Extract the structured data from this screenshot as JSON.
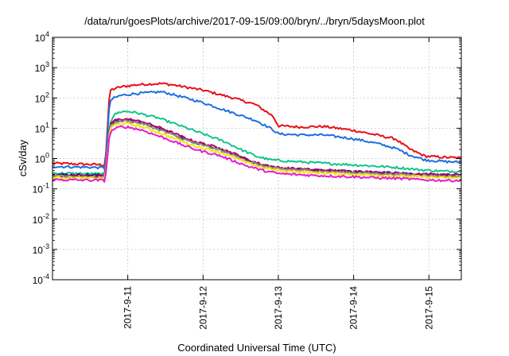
{
  "chart_data": {
    "type": "line",
    "title": "/data/run/goesPlots/archive/2017-09-15/09:00/bryn/../bryn/5daysMoon.plot",
    "xlabel": "Coordinated Universal Time (UTC)",
    "ylabel": "cSv/day",
    "x_unit": "days from 2017-09-10T00:00 UTC",
    "xlim": [
      0.0,
      5.43
    ],
    "ylim": [
      0.0001,
      10000
    ],
    "yscale": "log",
    "grid": true,
    "legend": "none",
    "x_ticks": [
      {
        "label": "2017-9-11",
        "x": 1.0
      },
      {
        "label": "2017-9-12",
        "x": 2.0
      },
      {
        "label": "2017-9-13",
        "x": 3.0
      },
      {
        "label": "2017-9-14",
        "x": 4.0
      },
      {
        "label": "2017-9-15",
        "x": 5.0
      }
    ],
    "y_ticks": [
      {
        "base": "10",
        "exp": "-4",
        "value": 0.0001
      },
      {
        "base": "10",
        "exp": "-3",
        "value": 0.001
      },
      {
        "base": "10",
        "exp": "-2",
        "value": 0.01
      },
      {
        "base": "10",
        "exp": "-1",
        "value": 0.1
      },
      {
        "base": "10",
        "exp": "0",
        "value": 1
      },
      {
        "base": "10",
        "exp": "1",
        "value": 10
      },
      {
        "base": "10",
        "exp": "2",
        "value": 100
      },
      {
        "base": "10",
        "exp": "3",
        "value": 1000
      },
      {
        "base": "10",
        "exp": "4",
        "value": 10000
      }
    ],
    "series": [
      {
        "color": "#e8101a",
        "x": [
          0.0,
          0.68,
          0.7,
          0.76,
          0.82,
          0.9,
          1.1,
          1.3,
          1.45,
          1.6,
          2.0,
          2.4,
          2.7,
          2.93,
          3.0,
          3.3,
          3.6,
          4.0,
          4.3,
          4.55,
          4.75,
          4.95,
          5.2,
          5.43
        ],
        "y": [
          0.7,
          0.62,
          0.58,
          180,
          200,
          230,
          270,
          290,
          300,
          270,
          180,
          100,
          60,
          25,
          12,
          11,
          11.5,
          8.5,
          6,
          4.5,
          2,
          1.2,
          1.1,
          1.05
        ]
      },
      {
        "color": "#1f6fe0",
        "x": [
          0.0,
          0.68,
          0.7,
          0.76,
          0.82,
          0.9,
          1.1,
          1.3,
          1.45,
          1.6,
          2.0,
          2.4,
          2.7,
          2.93,
          3.0,
          3.3,
          3.6,
          4.0,
          4.3,
          4.55,
          4.75,
          4.95,
          5.2,
          5.43
        ],
        "y": [
          0.55,
          0.5,
          0.45,
          80,
          100,
          120,
          140,
          150,
          160,
          130,
          70,
          32,
          18,
          9,
          6.5,
          6,
          6,
          4.5,
          3.2,
          2.2,
          1.3,
          0.9,
          0.8,
          0.75
        ]
      },
      {
        "color": "#14c38e",
        "x": [
          0.0,
          0.68,
          0.7,
          0.76,
          0.82,
          0.9,
          1.0,
          1.1,
          1.4,
          1.7,
          2.0,
          2.3,
          2.5,
          2.7,
          2.9,
          3.2,
          3.6,
          4.0,
          4.3,
          4.6,
          4.9,
          5.2,
          5.43
        ],
        "y": [
          0.33,
          0.31,
          0.3,
          15,
          28,
          35,
          36,
          33,
          22,
          12,
          6.5,
          3.5,
          2,
          1.2,
          0.9,
          0.8,
          0.7,
          0.62,
          0.56,
          0.5,
          0.42,
          0.38,
          0.38
        ]
      },
      {
        "color": "#22246e",
        "x": [
          0.0,
          0.68,
          0.7,
          0.76,
          0.82,
          0.9,
          1.0,
          1.2,
          1.5,
          1.8,
          2.0,
          2.2,
          2.4,
          2.6,
          2.8,
          3.0,
          3.3,
          3.6,
          4.0,
          4.3,
          4.6,
          4.9,
          5.2,
          5.43
        ],
        "y": [
          0.3,
          0.28,
          0.27,
          12,
          16,
          18,
          19,
          15,
          8,
          4,
          2.9,
          2.2,
          1.4,
          0.85,
          0.6,
          0.48,
          0.44,
          0.4,
          0.37,
          0.35,
          0.33,
          0.3,
          0.28,
          0.28
        ]
      },
      {
        "color": "#b3006a",
        "x": [
          0.0,
          0.68,
          0.7,
          0.76,
          0.82,
          0.9,
          1.0,
          1.2,
          1.5,
          1.8,
          2.0,
          2.2,
          2.4,
          2.6,
          2.8,
          3.0,
          3.3,
          3.6,
          4.0,
          4.3,
          4.6,
          4.9,
          5.2,
          5.43
        ],
        "y": [
          0.28,
          0.26,
          0.25,
          13,
          18,
          20,
          20,
          16,
          9,
          4.3,
          3.1,
          2.3,
          1.5,
          0.9,
          0.62,
          0.5,
          0.45,
          0.41,
          0.38,
          0.35,
          0.33,
          0.31,
          0.29,
          0.29
        ]
      },
      {
        "color": "#8b8f86",
        "x": [
          0.0,
          0.68,
          0.7,
          0.76,
          0.82,
          0.9,
          1.0,
          1.2,
          1.5,
          1.8,
          2.0,
          2.2,
          2.4,
          2.6,
          2.8,
          3.0,
          3.3,
          3.6,
          4.0,
          4.3,
          4.6,
          4.9,
          5.2,
          5.43
        ],
        "y": [
          0.26,
          0.24,
          0.23,
          11,
          15,
          17,
          17.5,
          14,
          7.5,
          3.8,
          2.7,
          2.0,
          1.3,
          0.8,
          0.56,
          0.45,
          0.41,
          0.37,
          0.34,
          0.32,
          0.3,
          0.28,
          0.26,
          0.26
        ]
      },
      {
        "color": "#f2e600",
        "x": [
          0.0,
          0.68,
          0.7,
          0.76,
          0.82,
          0.9,
          1.0,
          1.2,
          1.5,
          1.8,
          2.0,
          2.2,
          2.4,
          2.6,
          2.8,
          3.0,
          3.3,
          3.6,
          4.0,
          4.3,
          4.6,
          4.9,
          5.2,
          5.43
        ],
        "y": [
          0.24,
          0.22,
          0.21,
          9,
          12.5,
          14,
          14,
          11,
          6,
          3.1,
          2.2,
          1.7,
          1.1,
          0.7,
          0.5,
          0.4,
          0.36,
          0.33,
          0.3,
          0.28,
          0.26,
          0.25,
          0.23,
          0.23
        ]
      },
      {
        "color": "#e51ad6",
        "x": [
          0.0,
          0.68,
          0.7,
          0.76,
          0.82,
          0.9,
          1.0,
          1.2,
          1.5,
          1.8,
          2.0,
          2.2,
          2.4,
          2.6,
          2.8,
          3.0,
          3.3,
          3.6,
          4.0,
          4.3,
          4.6,
          4.9,
          5.2,
          5.43
        ],
        "y": [
          0.2,
          0.19,
          0.18,
          7,
          9.5,
          11,
          11,
          8.5,
          4.6,
          2.4,
          1.7,
          1.3,
          0.85,
          0.55,
          0.4,
          0.32,
          0.29,
          0.27,
          0.25,
          0.23,
          0.22,
          0.2,
          0.19,
          0.19
        ]
      }
    ]
  }
}
